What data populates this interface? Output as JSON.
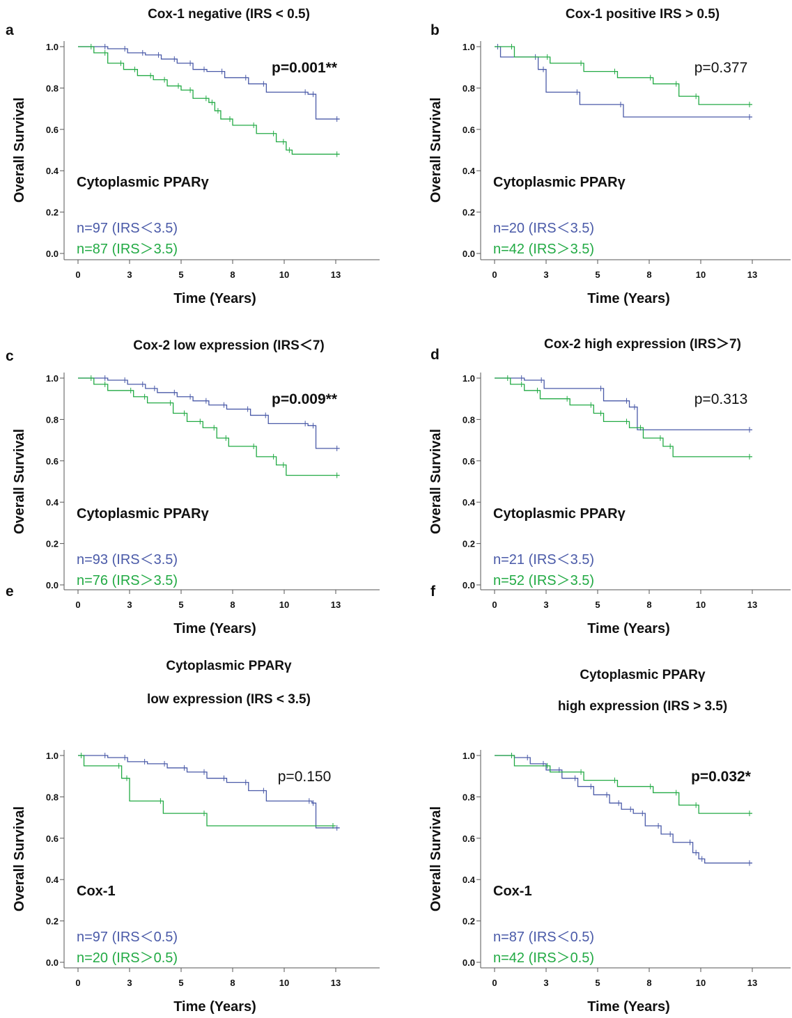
{
  "chart_data": [
    {
      "type": "line",
      "panel_letter": "a",
      "title": "Cox-1 negative (IRS < 0.5)",
      "xlabel": "Time (Years)",
      "ylabel": "Overall Survival",
      "xlim": [
        0,
        14.6
      ],
      "ylim": [
        0,
        1.0
      ],
      "x_ticks": [
        "0",
        "3",
        "5",
        "8",
        "10",
        "13"
      ],
      "y_ticks": [
        "0.0",
        "0.2",
        "0.4",
        "0.6",
        "0.8",
        "1.0"
      ],
      "group_label": "Cytoplasmic PPARγ",
      "p_value": "p=0.001**",
      "p_bold": true,
      "series": [
        {
          "name": "n=97 (IRS＜3.5)",
          "color": "#4a5aa8",
          "x": [
            0,
            1.5,
            2.5,
            3.4,
            4.2,
            5.0,
            5.8,
            6.5,
            7.4,
            8.6,
            9.5,
            11.6,
            12.0,
            13.2
          ],
          "y": [
            1.0,
            0.99,
            0.97,
            0.96,
            0.94,
            0.92,
            0.89,
            0.88,
            0.85,
            0.82,
            0.78,
            0.77,
            0.65,
            0.65
          ]
        },
        {
          "name": "n=87 (IRS＞3.5)",
          "color": "#22aa44",
          "x": [
            0,
            0.8,
            1.5,
            2.3,
            3.0,
            3.8,
            4.5,
            5.2,
            5.8,
            6.6,
            6.9,
            7.2,
            7.8,
            9.0,
            10.0,
            10.5,
            10.8,
            13.2
          ],
          "y": [
            1.0,
            0.97,
            0.92,
            0.89,
            0.86,
            0.84,
            0.81,
            0.79,
            0.75,
            0.73,
            0.69,
            0.65,
            0.62,
            0.58,
            0.54,
            0.5,
            0.48,
            0.48
          ]
        }
      ]
    },
    {
      "type": "line",
      "panel_letter": "b",
      "title": "Cox-1 positive IRS > 0.5)",
      "xlabel": "Time (Years)",
      "ylabel": "Overall Survival",
      "xlim": [
        0,
        14.6
      ],
      "ylim": [
        0,
        1.0
      ],
      "x_ticks": [
        "0",
        "3",
        "5",
        "8",
        "10",
        "13"
      ],
      "y_ticks": [
        "0.0",
        "0.2",
        "0.4",
        "0.6",
        "0.8",
        "1.0"
      ],
      "group_label": "Cytoplasmic PPARγ",
      "p_value": "p=0.377",
      "p_bold": false,
      "series": [
        {
          "name": "n=20 (IRS＜3.5)",
          "color": "#4a5aa8",
          "x": [
            0,
            0.3,
            2.2,
            2.6,
            4.3,
            6.5,
            13.0
          ],
          "y": [
            1.0,
            0.95,
            0.89,
            0.78,
            0.72,
            0.66,
            0.66
          ]
        },
        {
          "name": "n=42 (IRS＞3.5)",
          "color": "#22aa44",
          "x": [
            0,
            1.0,
            2.8,
            4.5,
            6.2,
            8.0,
            9.3,
            10.3,
            13.0
          ],
          "y": [
            1.0,
            0.95,
            0.92,
            0.88,
            0.85,
            0.82,
            0.76,
            0.72,
            0.72
          ]
        }
      ]
    },
    {
      "type": "line",
      "panel_letter": "c",
      "title": "Cox-2 low expression (IRS＜7)",
      "xlabel": "Time (Years)",
      "ylabel": "Overall Survival",
      "xlim": [
        0,
        14.6
      ],
      "ylim": [
        0,
        1.0
      ],
      "x_ticks": [
        "0",
        "3",
        "5",
        "8",
        "10",
        "13"
      ],
      "y_ticks": [
        "0.0",
        "0.2",
        "0.4",
        "0.6",
        "0.8",
        "1.0"
      ],
      "group_label": "Cytoplasmic PPARγ",
      "p_value": "p=0.009**",
      "p_bold": true,
      "series": [
        {
          "name": "n=93 (IRS＜3.5)",
          "color": "#4a5aa8",
          "x": [
            0,
            1.5,
            2.5,
            3.4,
            4.0,
            5.0,
            5.8,
            6.6,
            7.5,
            8.7,
            9.6,
            11.6,
            12.0,
            13.2
          ],
          "y": [
            1.0,
            0.99,
            0.97,
            0.95,
            0.93,
            0.91,
            0.89,
            0.87,
            0.85,
            0.82,
            0.78,
            0.77,
            0.66,
            0.66
          ]
        },
        {
          "name": "n=76 (IRS＞3.5)",
          "color": "#22aa44",
          "x": [
            0,
            0.8,
            1.5,
            2.8,
            3.5,
            4.8,
            5.5,
            6.3,
            7.0,
            7.6,
            9.0,
            10.0,
            10.5,
            13.2
          ],
          "y": [
            1.0,
            0.97,
            0.94,
            0.91,
            0.88,
            0.83,
            0.79,
            0.76,
            0.71,
            0.67,
            0.62,
            0.58,
            0.53,
            0.53
          ]
        }
      ]
    },
    {
      "type": "line",
      "panel_letter": "d",
      "title": "Cox-2 high expression (IRS＞7)",
      "xlabel": "Time (Years)",
      "ylabel": "Overall Survival",
      "xlim": [
        0,
        14.6
      ],
      "ylim": [
        0,
        1.0
      ],
      "x_ticks": [
        "0",
        "3",
        "5",
        "8",
        "10",
        "13"
      ],
      "y_ticks": [
        "0.0",
        "0.2",
        "0.4",
        "0.6",
        "0.8",
        "1.0"
      ],
      "group_label": "Cytoplasmic PPARγ",
      "p_value": "p=0.313",
      "p_bold": false,
      "series": [
        {
          "name": "n=21 (IRS＜3.5)",
          "color": "#4a5aa8",
          "x": [
            0,
            1.5,
            2.5,
            5.5,
            6.8,
            7.2,
            13.0
          ],
          "y": [
            1.0,
            0.99,
            0.95,
            0.89,
            0.86,
            0.75,
            0.75
          ]
        },
        {
          "name": "n=52 (IRS＞3.5)",
          "color": "#22aa44",
          "x": [
            0,
            0.8,
            1.5,
            2.3,
            3.8,
            5.0,
            5.5,
            6.8,
            7.5,
            8.5,
            9.0,
            13.0
          ],
          "y": [
            1.0,
            0.97,
            0.94,
            0.9,
            0.87,
            0.83,
            0.79,
            0.76,
            0.71,
            0.67,
            0.62,
            0.62
          ]
        }
      ]
    },
    {
      "type": "line",
      "panel_letter": "e",
      "title_lines": [
        "Cytoplasmic PPARγ",
        "low expression (IRS < 3.5)"
      ],
      "xlabel": "Time (Years)",
      "ylabel": "Overall Survival",
      "xlim": [
        0,
        14.6
      ],
      "ylim": [
        0,
        1.0
      ],
      "x_ticks": [
        "0",
        "3",
        "5",
        "8",
        "10",
        "13"
      ],
      "y_ticks": [
        "0.0",
        "0.2",
        "0.4",
        "0.6",
        "0.8",
        "1.0"
      ],
      "group_label": "Cox-1",
      "p_value": "p=0.150",
      "p_bold": false,
      "series": [
        {
          "name": "n=97 (IRS＜0.5)",
          "color": "#4a5aa8",
          "x": [
            0,
            1.5,
            2.5,
            3.5,
            4.5,
            5.5,
            6.5,
            7.5,
            8.6,
            9.5,
            11.8,
            12.0,
            13.2
          ],
          "y": [
            1.0,
            0.99,
            0.97,
            0.96,
            0.94,
            0.92,
            0.89,
            0.87,
            0.83,
            0.78,
            0.77,
            0.65,
            0.65
          ]
        },
        {
          "name": "n=20 (IRS＞0.5)",
          "color": "#22aa44",
          "x": [
            0,
            0.3,
            2.2,
            2.6,
            4.3,
            6.5,
            13.0
          ],
          "y": [
            1.0,
            0.95,
            0.89,
            0.78,
            0.72,
            0.66,
            0.66
          ]
        }
      ]
    },
    {
      "type": "line",
      "panel_letter": "f",
      "title_lines": [
        "Cytoplasmic PPARγ",
        "high expression (IRS > 3.5)"
      ],
      "xlabel": "Time (Years)",
      "ylabel": "Overall Survival",
      "xlim": [
        0,
        14.6
      ],
      "ylim": [
        0,
        1.0
      ],
      "x_ticks": [
        "0",
        "3",
        "5",
        "8",
        "10",
        "13"
      ],
      "y_ticks": [
        "0.0",
        "0.2",
        "0.4",
        "0.6",
        "0.8",
        "1.0"
      ],
      "group_label": "Cox-1",
      "p_value": "p=0.032*",
      "p_bold": true,
      "series": [
        {
          "name": "n=87 (IRS＜0.5)",
          "color": "#4a5aa8",
          "x": [
            0,
            1.0,
            1.8,
            2.6,
            3.4,
            4.2,
            5.0,
            5.8,
            6.4,
            7.0,
            7.6,
            8.4,
            9.0,
            10.0,
            10.3,
            10.6,
            13.0
          ],
          "y": [
            1.0,
            0.99,
            0.96,
            0.93,
            0.89,
            0.85,
            0.81,
            0.77,
            0.74,
            0.72,
            0.66,
            0.62,
            0.58,
            0.53,
            0.5,
            0.48,
            0.48
          ]
        },
        {
          "name": "n=42 (IRS＞0.5)",
          "color": "#22aa44",
          "x": [
            0,
            1.0,
            2.8,
            4.5,
            6.2,
            8.0,
            9.3,
            10.3,
            13.0
          ],
          "y": [
            1.0,
            0.95,
            0.92,
            0.88,
            0.85,
            0.82,
            0.76,
            0.72,
            0.72
          ]
        }
      ]
    }
  ]
}
